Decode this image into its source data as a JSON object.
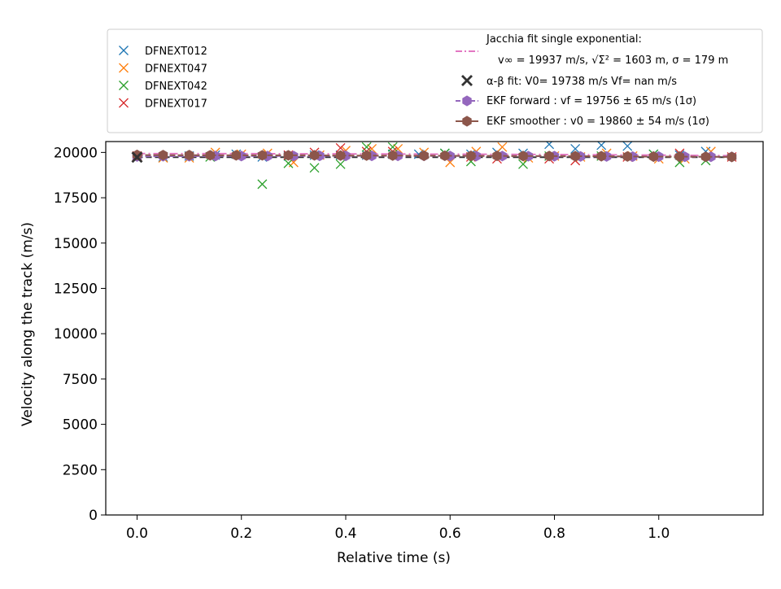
{
  "chart_data": {
    "type": "scatter",
    "title": "",
    "xlabel": "Relative time (s)",
    "ylabel": "Velocity along the track (m/s)",
    "xlim": [
      -0.06,
      1.2
    ],
    "ylim": [
      0,
      20600
    ],
    "x_ticks": [
      0.0,
      0.2,
      0.4,
      0.6,
      0.8,
      1.0
    ],
    "x_tick_labels": [
      "0.0",
      "0.2",
      "0.4",
      "0.6",
      "0.8",
      "1.0"
    ],
    "y_ticks": [
      0,
      2500,
      5000,
      7500,
      10000,
      12500,
      15000,
      17500,
      20000
    ],
    "y_tick_labels": [
      "0",
      "2500",
      "5000",
      "7500",
      "10000",
      "12500",
      "15000",
      "17500",
      "20000"
    ],
    "grid": false,
    "legend_left": {
      "placement": "top-left, above plot",
      "entries": [
        {
          "name": "DFNEXT012",
          "color": "#1f77b4",
          "marker": "x"
        },
        {
          "name": "DFNEXT047",
          "color": "#ff7f0e",
          "marker": "x"
        },
        {
          "name": "DFNEXT042",
          "color": "#2ca02c",
          "marker": "x"
        },
        {
          "name": "DFNEXT017",
          "color": "#d62728",
          "marker": "x"
        }
      ]
    },
    "legend_right": {
      "placement": "top-right, above plot",
      "entries": [
        {
          "name_line1": "Jacchia fit single exponential:",
          "name_line2": "v∞ = 19937 m/s, √Σ² = 1603 m, σ = 179 m",
          "color": "#e377c2",
          "marker": "dashdot-line"
        },
        {
          "name_line1": "α-β fit: V0= 19738 m/s   Vf= nan m/s",
          "color": "#333333",
          "marker": "X"
        },
        {
          "name_line1": "EKF forward : vf =  19756 ± 65 m/s (1σ)",
          "color": "#9467bd",
          "marker": "line-hex"
        },
        {
          "name_line1": "EKF smoother : v0 =  19860 ± 54 m/s (1σ)",
          "color": "#8c564b",
          "marker": "line-hex"
        }
      ]
    },
    "series": [
      {
        "name": "DFNEXT012",
        "color": "#1f77b4",
        "marker": "x",
        "x": [
          0.0,
          0.05,
          0.1,
          0.15,
          0.19,
          0.24,
          0.29,
          0.34,
          0.39,
          0.44,
          0.49,
          0.54,
          0.59,
          0.64,
          0.69,
          0.74,
          0.79,
          0.84,
          0.89,
          0.94,
          0.99,
          1.04,
          1.09
        ],
        "y": [
          19800,
          19750,
          19800,
          19850,
          19900,
          19750,
          19800,
          19850,
          19850,
          19850,
          19900,
          19900,
          19950,
          19900,
          20000,
          19950,
          20450,
          20200,
          20400,
          20350,
          19900,
          19850,
          20050
        ]
      },
      {
        "name": "DFNEXT047",
        "color": "#ff7f0e",
        "marker": "x",
        "x": [
          0.0,
          0.05,
          0.1,
          0.15,
          0.2,
          0.25,
          0.3,
          0.35,
          0.4,
          0.45,
          0.5,
          0.55,
          0.6,
          0.65,
          0.7,
          0.75,
          0.8,
          0.85,
          0.9,
          0.95,
          1.0,
          1.05,
          1.1
        ],
        "y": [
          19800,
          19700,
          19700,
          20000,
          19900,
          19950,
          19450,
          19850,
          20100,
          20200,
          20200,
          20000,
          19450,
          20050,
          20300,
          19700,
          19800,
          19750,
          19950,
          19800,
          19650,
          19650,
          20050
        ]
      },
      {
        "name": "DFNEXT042",
        "color": "#2ca02c",
        "marker": "x",
        "x": [
          0.14,
          0.24,
          0.29,
          0.34,
          0.39,
          0.44,
          0.49,
          0.59,
          0.64,
          0.74,
          0.79,
          0.89,
          0.99,
          1.04,
          1.09
        ],
        "y": [
          19750,
          18250,
          19400,
          19150,
          19350,
          20300,
          20300,
          19950,
          19500,
          19350,
          19800,
          19800,
          19900,
          19450,
          19550
        ]
      },
      {
        "name": "DFNEXT017",
        "color": "#d62728",
        "marker": "x",
        "x": [
          0.0,
          0.29,
          0.34,
          0.39,
          0.44,
          0.49,
          0.64,
          0.69,
          0.79,
          0.84,
          0.94,
          1.04,
          1.14
        ],
        "y": [
          19800,
          19850,
          20000,
          20250,
          20050,
          20050,
          19750,
          19650,
          19650,
          19550,
          19750,
          19950,
          19750
        ]
      },
      {
        "name": "EKF forward : vf =  19756 ± 65 m/s (1σ)",
        "color": "#9467bd",
        "marker": "hex",
        "x": [
          0.0,
          0.05,
          0.1,
          0.15,
          0.2,
          0.25,
          0.3,
          0.35,
          0.4,
          0.45,
          0.5,
          0.55,
          0.6,
          0.65,
          0.7,
          0.75,
          0.8,
          0.85,
          0.9,
          0.95,
          1.0,
          1.05,
          1.1,
          1.14
        ],
        "y": [
          19780,
          19790,
          19790,
          19800,
          19800,
          19800,
          19800,
          19810,
          19810,
          19810,
          19810,
          19810,
          19800,
          19800,
          19800,
          19790,
          19790,
          19780,
          19780,
          19770,
          19770,
          19760,
          19760,
          19756
        ]
      },
      {
        "name": "EKF smoother : v0 =  19860 ± 54 m/s (1σ)",
        "color": "#8c564b",
        "marker": "hex",
        "x": [
          0.0,
          0.05,
          0.1,
          0.14,
          0.19,
          0.24,
          0.29,
          0.34,
          0.39,
          0.44,
          0.49,
          0.55,
          0.59,
          0.64,
          0.69,
          0.74,
          0.79,
          0.84,
          0.89,
          0.94,
          0.99,
          1.04,
          1.09,
          1.14
        ],
        "y": [
          19860,
          19850,
          19850,
          19840,
          19840,
          19840,
          19840,
          19840,
          19830,
          19830,
          19830,
          19820,
          19820,
          19810,
          19810,
          19800,
          19800,
          19790,
          19790,
          19780,
          19770,
          19770,
          19760,
          19750
        ]
      }
    ],
    "fits": [
      {
        "name": "Jacchia fit single exponential",
        "style": "dashdot",
        "color": "#e377c2",
        "x": [
          0.0,
          0.2,
          0.4,
          0.6,
          0.8,
          1.0,
          1.14
        ],
        "y": [
          19937,
          19930,
          19920,
          19905,
          19880,
          19850,
          19820
        ]
      },
      {
        "name": "α-β fit",
        "style": "dashed",
        "color": "#333333",
        "x": [
          0.0,
          1.14
        ],
        "y": [
          19738,
          19738
        ]
      }
    ],
    "highlight_points": [
      {
        "name": "α-β fit marker",
        "color": "#333333",
        "marker": "X",
        "x": [
          0.0
        ],
        "y": [
          19738
        ]
      }
    ]
  }
}
